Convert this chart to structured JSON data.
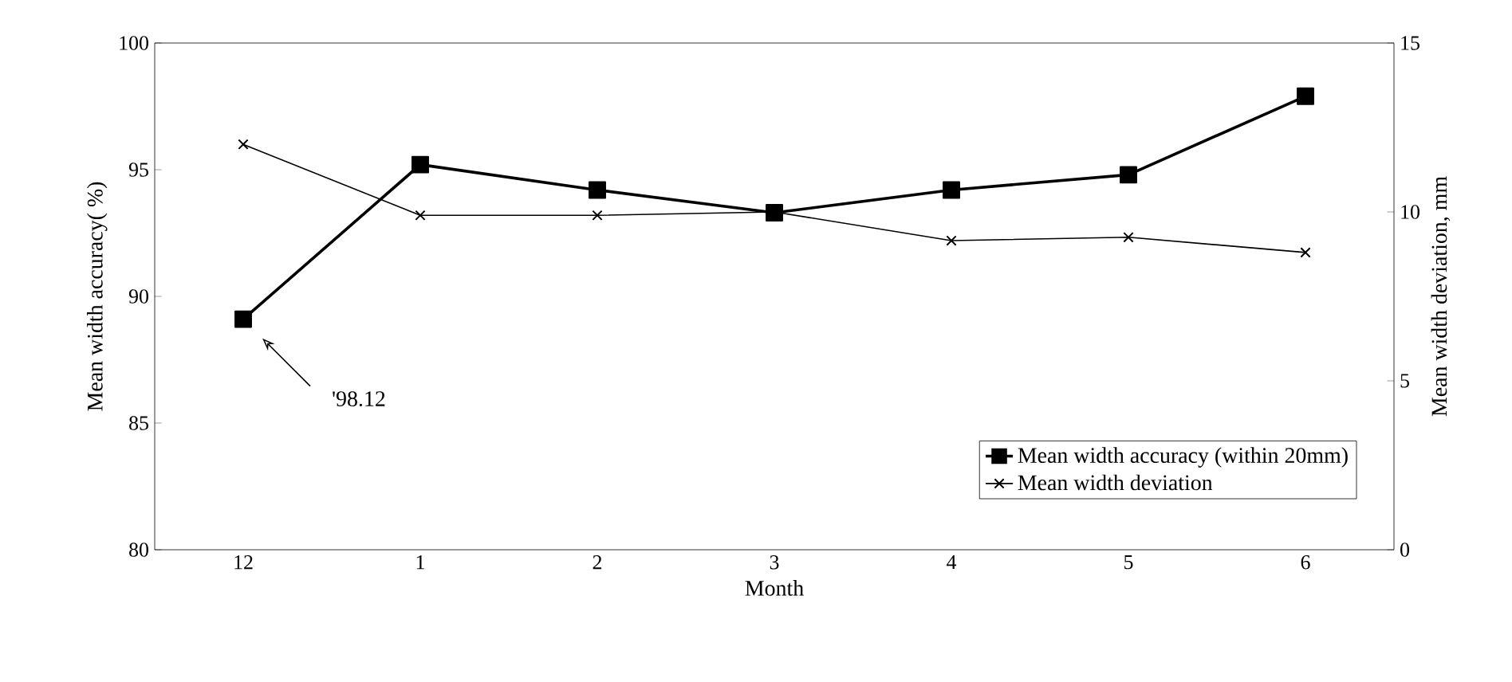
{
  "chart_data": {
    "type": "line",
    "xlabel": "Month",
    "ylabel": "Mean width accuracy( %)",
    "y2label": "Mean width deviation, mm",
    "categories": [
      "12",
      "1",
      "2",
      "3",
      "4",
      "5",
      "6"
    ],
    "series": [
      {
        "name": "Mean width accuracy (within 20mm)",
        "color": "#000000",
        "marker": "square",
        "values": [
          89.1,
          95.2,
          94.2,
          93.3,
          94.2,
          94.8,
          97.9
        ]
      },
      {
        "name": "Mean width deviation",
        "color": "#000000",
        "marker": "cross",
        "axis": "y2",
        "values": [
          12.0,
          9.9,
          9.9,
          10.0,
          9.15,
          9.25,
          8.8
        ]
      }
    ],
    "ylim": [
      80,
      100
    ],
    "yticks": [
      80,
      85,
      90,
      95,
      100
    ],
    "y2lim": [
      0,
      15
    ],
    "y2ticks": [
      0,
      5,
      10,
      15
    ],
    "annotations": [
      "'98.12"
    ],
    "legend": "bottom right",
    "grid": false,
    "line_style": "solid"
  }
}
